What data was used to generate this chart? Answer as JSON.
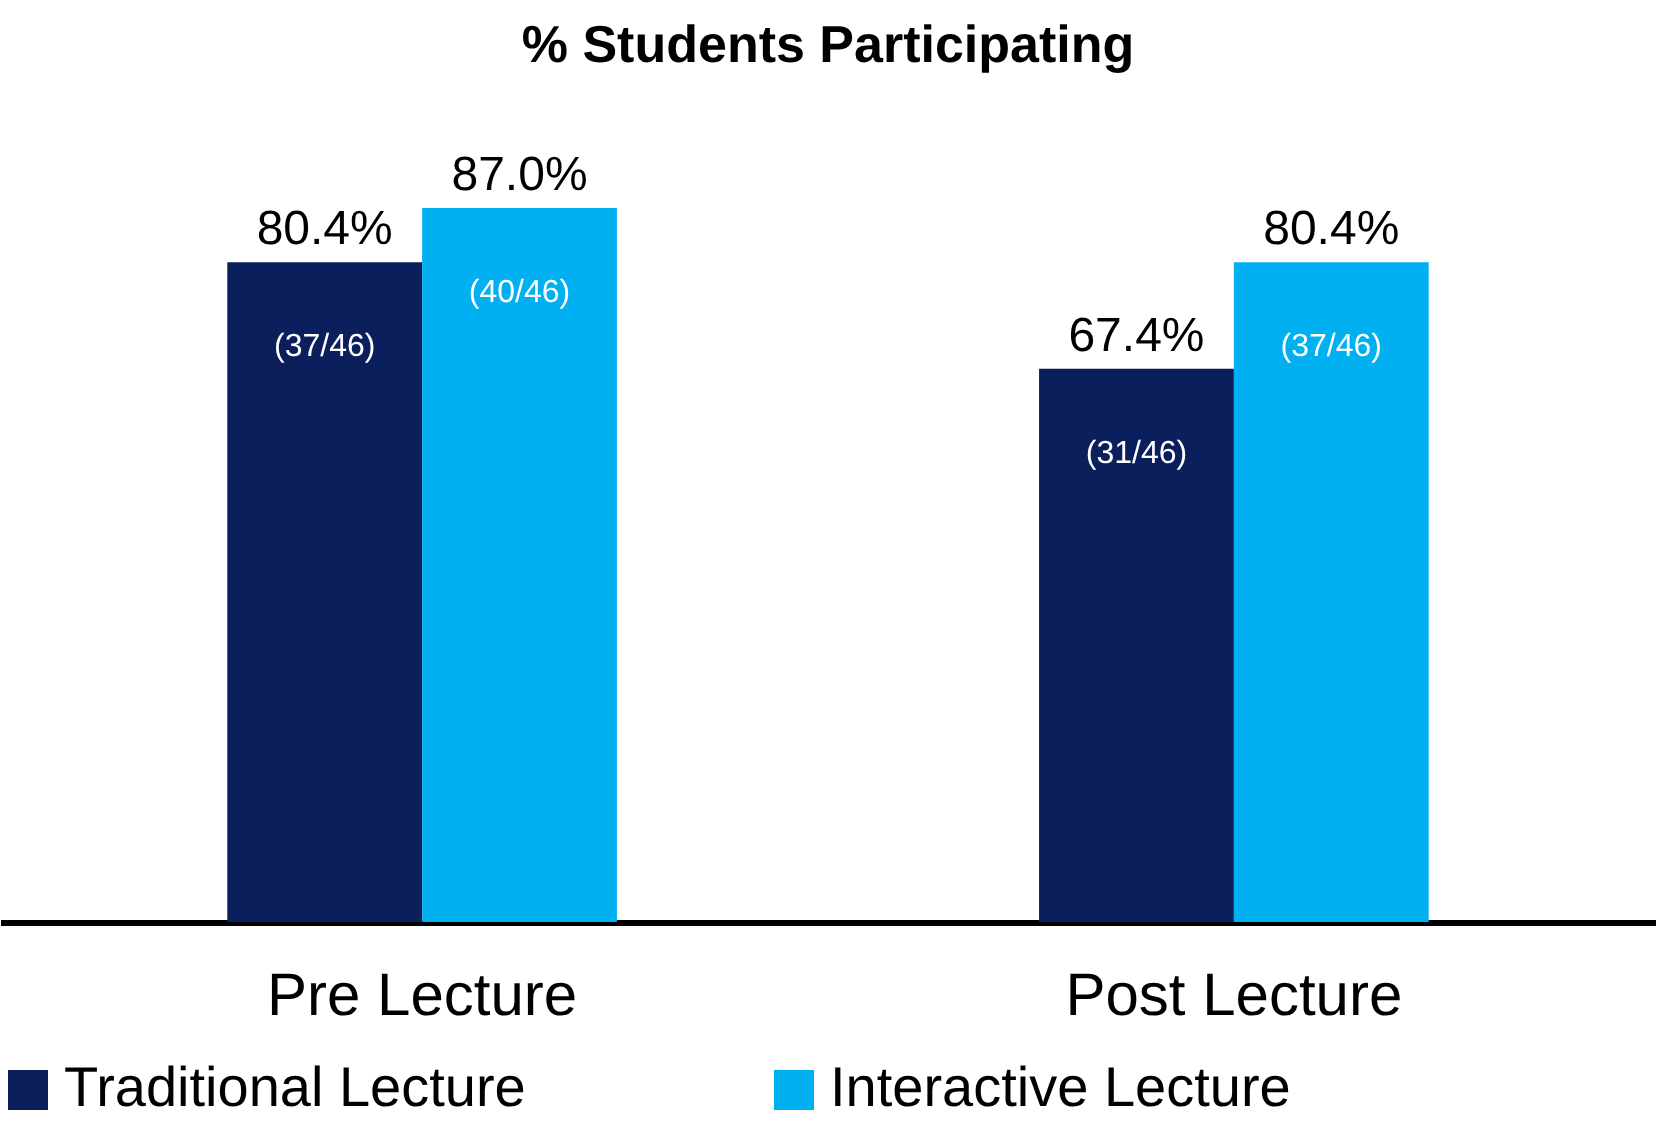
{
  "chart_data": {
    "type": "bar",
    "title": "% Students Participating",
    "categories": [
      "Pre Lecture",
      "Post Lecture"
    ],
    "series": [
      {
        "name": "Traditional Lecture",
        "color": "#0b1f5c",
        "values": [
          80.4,
          67.4
        ],
        "value_labels": [
          "80.4%",
          "67.4%"
        ]
      },
      {
        "name": "Interactive Lecture",
        "color": "#00b0f0",
        "values": [
          87.0,
          80.4
        ],
        "value_labels": [
          "87.0%",
          "80.4%"
        ]
      }
    ],
    "annotations": [
      "(37/46)",
      "(40/46)",
      "(31/46)",
      "(37/46)"
    ],
    "tick_labels": "x",
    "legend": "bottom"
  }
}
